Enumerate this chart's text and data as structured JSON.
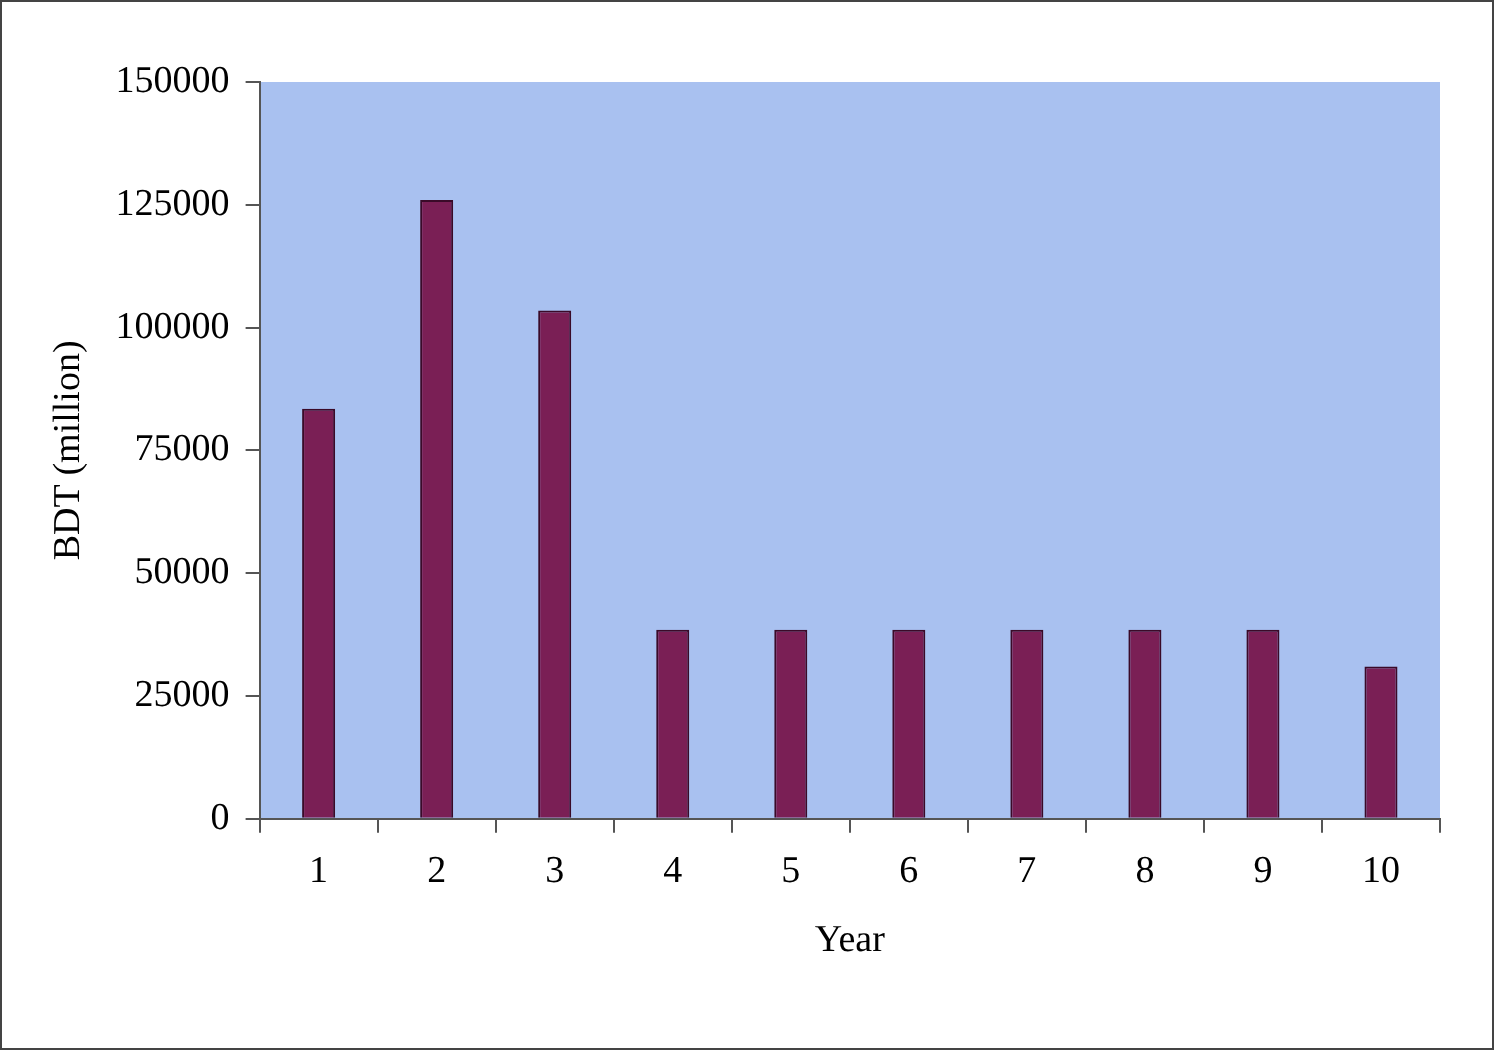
{
  "chart_data": {
    "type": "bar",
    "xlabel": "Year",
    "ylabel": "BDT (million)",
    "categories": [
      "1",
      "2",
      "3",
      "4",
      "5",
      "6",
      "7",
      "8",
      "9",
      "10"
    ],
    "values": [
      83500,
      126000,
      103500,
      38500,
      38500,
      38500,
      38500,
      38500,
      38500,
      31000
    ],
    "color": "#7a1f55",
    "ylim": [
      0,
      150000
    ],
    "yticks": [
      0,
      25000,
      50000,
      75000,
      100000,
      125000,
      150000
    ],
    "grid": false,
    "legend": false
  }
}
